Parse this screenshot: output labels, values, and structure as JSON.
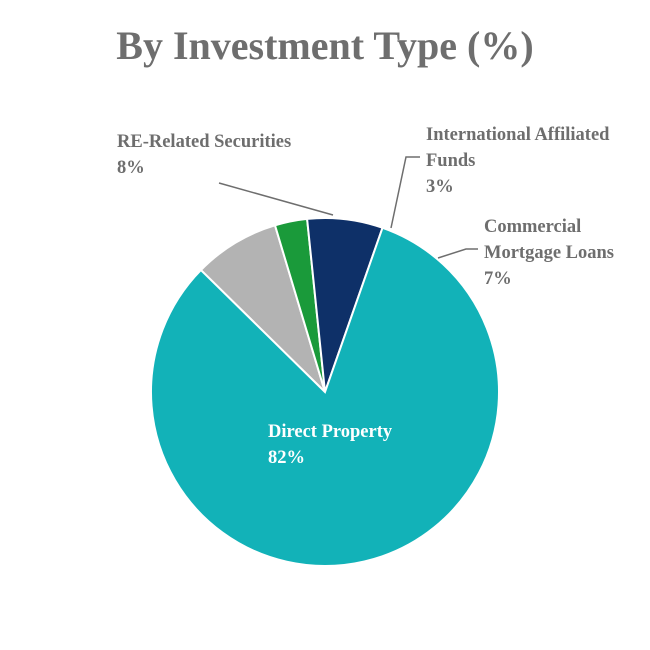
{
  "chart_data": {
    "type": "pie",
    "title": "By Investment Type (%)",
    "slices": [
      {
        "label": "Direct Property",
        "value": 82,
        "value_label": "82%",
        "color": "#12b2b8"
      },
      {
        "label": "RE-Related Securities",
        "value": 8,
        "value_label": "8%",
        "color": "#b3b3b3"
      },
      {
        "label": "International Affiliated Funds",
        "value": 3,
        "value_label": "3%",
        "color": "#1a9a3a"
      },
      {
        "label": "Commercial Mortgage Loans",
        "value": 7,
        "value_label": "7%",
        "color": "#0e3068"
      }
    ],
    "label_color_outside": "#6e6e6e",
    "label_color_inside": "#ffffff",
    "slice_border_color": "#ffffff"
  }
}
